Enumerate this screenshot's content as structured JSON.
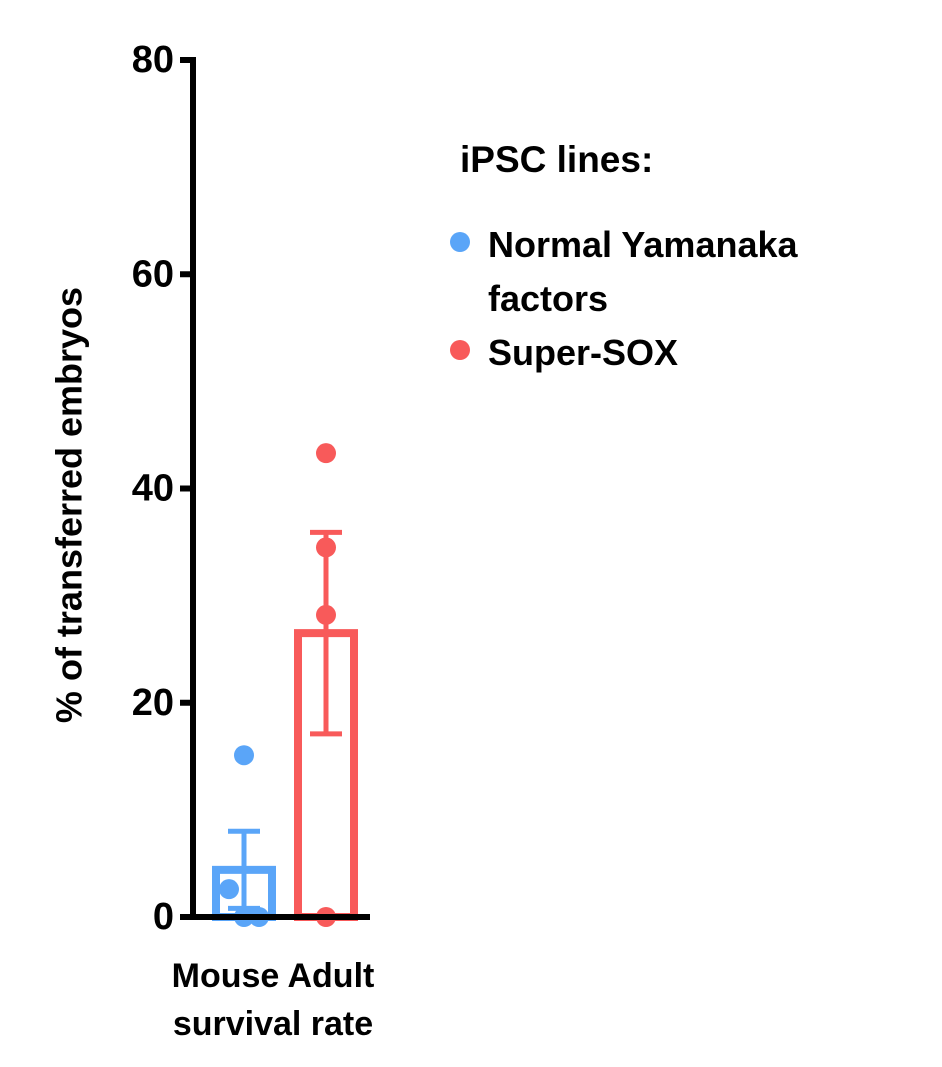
{
  "chart_data": {
    "type": "bar",
    "ylabel": "% of transferred embryos",
    "categories": [
      "Mouse Adult survival rate"
    ],
    "legend_title": "iPSC lines:",
    "series": [
      {
        "name": "Normal Yamanaka factors",
        "color": "#5aa5f8",
        "values": [
          4.4
        ],
        "errors": [
          3.6
        ],
        "points": [
          [
            15.1,
            2.6,
            0,
            0
          ]
        ]
      },
      {
        "name": "Super-SOX",
        "color": "#f85a5a",
        "values": [
          26.5
        ],
        "errors": [
          9.4
        ],
        "points": [
          [
            43.3,
            34.5,
            28.2,
            0
          ]
        ]
      }
    ],
    "ylim": [
      0,
      80
    ],
    "yticks": [
      0,
      20,
      40,
      60,
      80
    ]
  }
}
